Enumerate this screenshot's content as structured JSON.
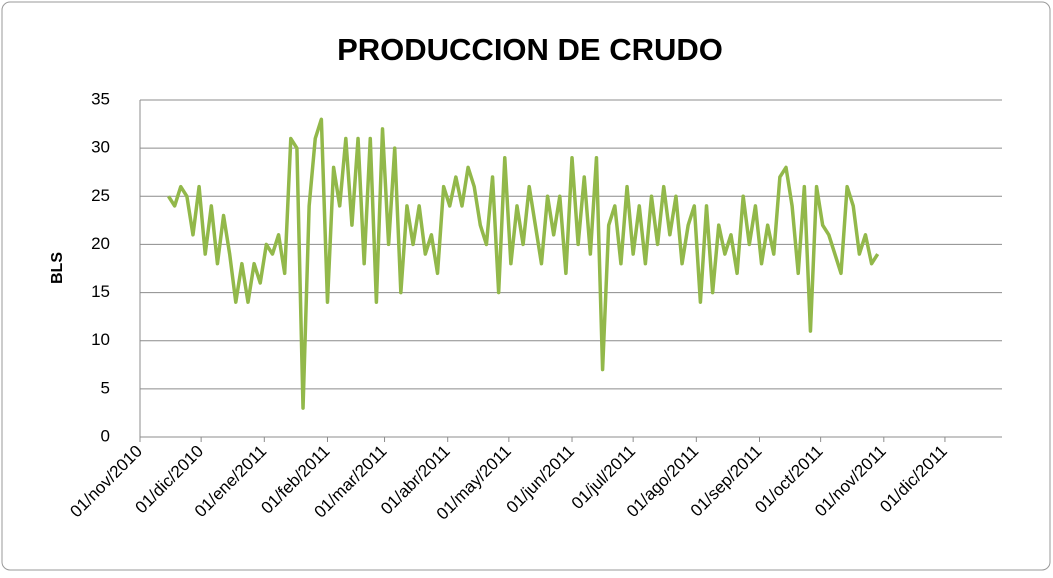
{
  "chart_data": {
    "type": "line",
    "title": "PRODUCCION DE CRUDO",
    "y_label": "BLS",
    "ylim": [
      0,
      35
    ],
    "yticks": [
      0,
      5,
      10,
      15,
      20,
      25,
      30,
      35
    ],
    "grid": true,
    "xlim": [
      "2010-11-01",
      "2011-12-29"
    ],
    "xticks": [
      {
        "value": "2010-11-01",
        "label": "01/nov/2010"
      },
      {
        "value": "2010-12-01",
        "label": "01/dic/2010"
      },
      {
        "value": "2011-01-01",
        "label": "01/ene/2011"
      },
      {
        "value": "2011-02-01",
        "label": "01/feb/2011"
      },
      {
        "value": "2011-03-01",
        "label": "01/mar/2011"
      },
      {
        "value": "2011-04-01",
        "label": "01/abr/2011"
      },
      {
        "value": "2011-05-01",
        "label": "01/may/2011"
      },
      {
        "value": "2011-06-01",
        "label": "01/jun/2011"
      },
      {
        "value": "2011-07-01",
        "label": "01/jul/2011"
      },
      {
        "value": "2011-08-01",
        "label": "01/ago/2011"
      },
      {
        "value": "2011-09-01",
        "label": "01/sep/2011"
      },
      {
        "value": "2011-10-01",
        "label": "01/oct/2011"
      },
      {
        "value": "2011-11-01",
        "label": "01/nov/2011"
      },
      {
        "value": "2011-12-01",
        "label": "01/dic/2011"
      }
    ],
    "x": [
      "2010-11-15",
      "2010-11-18",
      "2010-11-21",
      "2010-11-24",
      "2010-11-27",
      "2010-11-30",
      "2010-12-03",
      "2010-12-06",
      "2010-12-09",
      "2010-12-12",
      "2010-12-15",
      "2010-12-18",
      "2010-12-21",
      "2010-12-24",
      "2010-12-27",
      "2010-12-30",
      "2011-01-02",
      "2011-01-05",
      "2011-01-08",
      "2011-01-11",
      "2011-01-14",
      "2011-01-17",
      "2011-01-20",
      "2011-01-23",
      "2011-01-26",
      "2011-01-29",
      "2011-02-01",
      "2011-02-04",
      "2011-02-07",
      "2011-02-10",
      "2011-02-13",
      "2011-02-16",
      "2011-02-19",
      "2011-02-22",
      "2011-02-25",
      "2011-02-28",
      "2011-03-03",
      "2011-03-06",
      "2011-03-09",
      "2011-03-12",
      "2011-03-15",
      "2011-03-18",
      "2011-03-21",
      "2011-03-24",
      "2011-03-27",
      "2011-03-30",
      "2011-04-02",
      "2011-04-05",
      "2011-04-08",
      "2011-04-11",
      "2011-04-14",
      "2011-04-17",
      "2011-04-20",
      "2011-04-23",
      "2011-04-26",
      "2011-04-29",
      "2011-05-02",
      "2011-05-05",
      "2011-05-08",
      "2011-05-11",
      "2011-05-14",
      "2011-05-17",
      "2011-05-20",
      "2011-05-23",
      "2011-05-26",
      "2011-05-29",
      "2011-06-01",
      "2011-06-04",
      "2011-06-07",
      "2011-06-10",
      "2011-06-13",
      "2011-06-16",
      "2011-06-19",
      "2011-06-22",
      "2011-06-25",
      "2011-06-28",
      "2011-07-01",
      "2011-07-04",
      "2011-07-07",
      "2011-07-10",
      "2011-07-13",
      "2011-07-16",
      "2011-07-19",
      "2011-07-22",
      "2011-07-25",
      "2011-07-28",
      "2011-07-31",
      "2011-08-03",
      "2011-08-06",
      "2011-08-09",
      "2011-08-12",
      "2011-08-15",
      "2011-08-18",
      "2011-08-21",
      "2011-08-24",
      "2011-08-27",
      "2011-08-30",
      "2011-09-02",
      "2011-09-05",
      "2011-09-08",
      "2011-09-11",
      "2011-09-14",
      "2011-09-17",
      "2011-09-20",
      "2011-09-23",
      "2011-09-26",
      "2011-09-29",
      "2011-10-02",
      "2011-10-05",
      "2011-10-08",
      "2011-10-11",
      "2011-10-14",
      "2011-10-17",
      "2011-10-20",
      "2011-10-23",
      "2011-10-26",
      "2011-10-29"
    ],
    "series": [
      {
        "color": "#92b84a",
        "values": [
          25,
          24,
          26,
          25,
          21,
          26,
          19,
          24,
          18,
          23,
          19,
          14,
          18,
          14,
          18,
          16,
          20,
          19,
          21,
          17,
          31,
          30,
          3,
          24,
          31,
          33,
          14,
          28,
          24,
          31,
          22,
          31,
          18,
          31,
          14,
          32,
          20,
          30,
          15,
          24,
          20,
          24,
          19,
          21,
          17,
          26,
          24,
          27,
          24,
          28,
          26,
          22,
          20,
          27,
          15,
          29,
          18,
          24,
          20,
          26,
          22,
          18,
          25,
          21,
          25,
          17,
          29,
          20,
          27,
          19,
          29,
          7,
          22,
          24,
          18,
          26,
          19,
          24,
          18,
          25,
          20,
          26,
          21,
          25,
          18,
          22,
          24,
          14,
          24,
          15,
          22,
          19,
          21,
          17,
          25,
          20,
          24,
          18,
          22,
          19,
          27,
          28,
          24,
          17,
          26,
          11,
          26,
          22,
          21,
          19,
          17,
          26,
          24,
          19,
          21,
          18,
          19
        ]
      }
    ]
  }
}
